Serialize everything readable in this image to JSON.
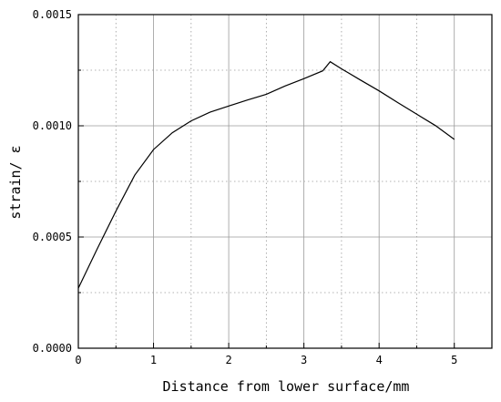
{
  "chart_data": {
    "type": "line",
    "title": "",
    "xlabel": "Distance from lower surface/mm",
    "ylabel": "strain/ ε",
    "xlim": [
      0,
      5.5
    ],
    "ylim": [
      0,
      0.0015
    ],
    "xticks": [
      0,
      1,
      2,
      3,
      4,
      5
    ],
    "xtick_labels": [
      "0",
      "1",
      "2",
      "3",
      "4",
      "5"
    ],
    "yticks": [
      0,
      0.0005,
      0.001,
      0.0015
    ],
    "ytick_labels": [
      "0.0000",
      "0.0005",
      "0.0010",
      "0.0015"
    ],
    "x_grid": "major solid, minor dotted",
    "y_grid": "major solid, minor dotted",
    "legend": "none",
    "series": [
      {
        "x": [
          0,
          0.25,
          0.5,
          0.75,
          1.0,
          1.25,
          1.5,
          1.75,
          2.0,
          2.25,
          2.5,
          2.75,
          3.0,
          3.25,
          3.35,
          3.5,
          3.75,
          4.0,
          4.25,
          4.5,
          4.75,
          5.0
        ],
        "y": [
          0.00027,
          0.000446,
          0.000617,
          0.000778,
          0.000893,
          0.000969,
          0.001022,
          0.001061,
          0.001089,
          0.001116,
          0.001142,
          0.001179,
          0.001212,
          0.001247,
          0.001288,
          0.001256,
          0.001206,
          0.001157,
          0.001104,
          0.001052,
          0.001001,
          0.000939
        ],
        "color": "#000000"
      }
    ]
  }
}
